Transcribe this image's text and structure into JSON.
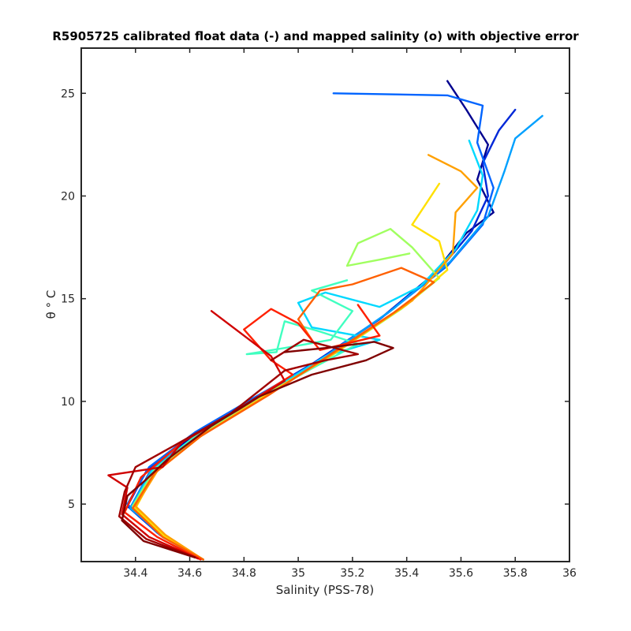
{
  "chart_data": {
    "type": "line",
    "title": "R5905725 calibrated float data (-) and mapped salinity (o) with objective error",
    "xlabel": "Salinity (PSS-78)",
    "ylabel": "θ ° C",
    "xlim": [
      34.2,
      36.0
    ],
    "ylim": [
      2.2,
      27.2
    ],
    "xticks": [
      "34.4",
      "34.6",
      "34.8",
      "35",
      "35.2",
      "35.4",
      "35.6",
      "35.8",
      "36"
    ],
    "yticks": [
      "5",
      "10",
      "15",
      "20",
      "25"
    ],
    "grid": false,
    "legend": "none",
    "colormap": [
      "#00008f",
      "#0040ff",
      "#00bfff",
      "#40ffbf",
      "#bfff40",
      "#ffbf00",
      "#ff4000",
      "#bf0000",
      "#800000"
    ],
    "series": [
      {
        "color": "#00008f",
        "values": [
          [
            34.65,
            2.3
          ],
          [
            34.5,
            3.4
          ],
          [
            34.38,
            4.8
          ],
          [
            34.45,
            6.5
          ],
          [
            34.6,
            8.2
          ],
          [
            34.82,
            10.0
          ],
          [
            35.05,
            11.8
          ],
          [
            35.3,
            14.0
          ],
          [
            35.5,
            16.2
          ],
          [
            35.62,
            18.2
          ],
          [
            35.72,
            19.2
          ],
          [
            35.66,
            20.8
          ],
          [
            35.7,
            22.5
          ],
          [
            35.62,
            24.2
          ],
          [
            35.55,
            25.6
          ]
        ]
      },
      {
        "color": "#0028d8",
        "values": [
          [
            34.64,
            2.35
          ],
          [
            34.49,
            3.5
          ],
          [
            34.37,
            4.9
          ],
          [
            34.44,
            6.6
          ],
          [
            34.6,
            8.3
          ],
          [
            34.83,
            10.1
          ],
          [
            35.06,
            11.9
          ],
          [
            35.31,
            14.1
          ],
          [
            35.52,
            16.4
          ],
          [
            35.64,
            18.3
          ],
          [
            35.7,
            20.0
          ],
          [
            35.68,
            21.6
          ],
          [
            35.74,
            23.2
          ],
          [
            35.8,
            24.2
          ]
        ]
      },
      {
        "color": "#0064ff",
        "values": [
          [
            34.64,
            2.3
          ],
          [
            34.48,
            3.6
          ],
          [
            34.37,
            5.0
          ],
          [
            34.45,
            6.8
          ],
          [
            34.62,
            8.5
          ],
          [
            34.84,
            10.2
          ],
          [
            35.08,
            12.0
          ],
          [
            35.33,
            14.3
          ],
          [
            35.55,
            16.6
          ],
          [
            35.68,
            18.6
          ],
          [
            35.72,
            20.4
          ],
          [
            35.66,
            22.6
          ],
          [
            35.68,
            24.4
          ],
          [
            35.55,
            24.9
          ],
          [
            35.13,
            25.0
          ]
        ]
      },
      {
        "color": "#00a0ff",
        "values": [
          [
            34.65,
            2.3
          ],
          [
            34.5,
            3.5
          ],
          [
            34.38,
            4.8
          ],
          [
            34.46,
            6.7
          ],
          [
            34.63,
            8.4
          ],
          [
            34.85,
            10.1
          ],
          [
            35.09,
            12.1
          ],
          [
            35.35,
            14.5
          ],
          [
            35.56,
            16.8
          ],
          [
            35.7,
            19.0
          ],
          [
            35.76,
            21.2
          ],
          [
            35.8,
            22.8
          ],
          [
            35.9,
            23.9
          ]
        ]
      },
      {
        "color": "#00d8ff",
        "values": [
          [
            34.65,
            2.3
          ],
          [
            34.5,
            3.4
          ],
          [
            34.39,
            4.9
          ],
          [
            34.46,
            6.6
          ],
          [
            34.62,
            8.3
          ],
          [
            34.86,
            10.2
          ],
          [
            35.1,
            12.2
          ],
          [
            35.3,
            13.0
          ],
          [
            35.05,
            13.6
          ],
          [
            35.0,
            14.8
          ],
          [
            35.1,
            15.3
          ],
          [
            35.3,
            14.6
          ],
          [
            35.45,
            15.6
          ],
          [
            35.58,
            17.4
          ],
          [
            35.66,
            19.3
          ],
          [
            35.68,
            21.0
          ],
          [
            35.63,
            22.7
          ]
        ]
      },
      {
        "color": "#40ffc0",
        "values": [
          [
            34.65,
            2.3
          ],
          [
            34.5,
            3.5
          ],
          [
            34.39,
            4.9
          ],
          [
            34.47,
            6.7
          ],
          [
            34.63,
            8.4
          ],
          [
            34.86,
            10.2
          ],
          [
            35.05,
            11.6
          ],
          [
            35.22,
            12.8
          ],
          [
            35.08,
            13.4
          ],
          [
            34.95,
            13.9
          ],
          [
            34.92,
            12.4
          ],
          [
            34.81,
            12.3
          ],
          [
            34.95,
            12.6
          ],
          [
            35.12,
            13.0
          ],
          [
            35.2,
            14.4
          ],
          [
            35.05,
            15.4
          ],
          [
            35.18,
            15.9
          ]
        ]
      },
      {
        "color": "#a0ff60",
        "values": [
          [
            34.65,
            2.3
          ],
          [
            34.5,
            3.5
          ],
          [
            34.39,
            4.9
          ],
          [
            34.47,
            6.6
          ],
          [
            34.63,
            8.3
          ],
          [
            34.87,
            10.2
          ],
          [
            35.12,
            12.2
          ],
          [
            35.38,
            14.5
          ],
          [
            35.52,
            16.0
          ],
          [
            35.42,
            17.5
          ],
          [
            35.34,
            18.4
          ],
          [
            35.22,
            17.7
          ],
          [
            35.18,
            16.6
          ],
          [
            35.3,
            16.9
          ],
          [
            35.41,
            17.2
          ]
        ]
      },
      {
        "color": "#ffe000",
        "values": [
          [
            34.65,
            2.3
          ],
          [
            34.51,
            3.4
          ],
          [
            34.4,
            4.8
          ],
          [
            34.47,
            6.5
          ],
          [
            34.64,
            8.3
          ],
          [
            34.88,
            10.3
          ],
          [
            35.14,
            12.4
          ],
          [
            35.4,
            14.7
          ],
          [
            35.55,
            16.4
          ],
          [
            35.52,
            17.8
          ],
          [
            35.42,
            18.6
          ],
          [
            35.48,
            19.8
          ],
          [
            35.52,
            20.6
          ]
        ]
      },
      {
        "color": "#ffa000",
        "values": [
          [
            34.65,
            2.3
          ],
          [
            34.51,
            3.5
          ],
          [
            34.4,
            4.9
          ],
          [
            34.48,
            6.6
          ],
          [
            34.65,
            8.4
          ],
          [
            34.9,
            10.4
          ],
          [
            35.15,
            12.5
          ],
          [
            35.42,
            14.9
          ],
          [
            35.57,
            17.2
          ],
          [
            35.58,
            19.2
          ],
          [
            35.66,
            20.4
          ],
          [
            35.6,
            21.2
          ],
          [
            35.48,
            22.0
          ]
        ]
      },
      {
        "color": "#ff6000",
        "values": [
          [
            34.65,
            2.3
          ],
          [
            34.5,
            3.4
          ],
          [
            34.39,
            4.8
          ],
          [
            34.47,
            6.5
          ],
          [
            34.64,
            8.3
          ],
          [
            34.89,
            10.3
          ],
          [
            35.12,
            12.3
          ],
          [
            35.35,
            14.3
          ],
          [
            35.5,
            15.8
          ],
          [
            35.38,
            16.5
          ],
          [
            35.2,
            15.7
          ],
          [
            35.08,
            15.4
          ],
          [
            35.0,
            14.0
          ],
          [
            35.05,
            13.0
          ]
        ]
      },
      {
        "color": "#ff2000",
        "values": [
          [
            34.64,
            2.3
          ],
          [
            34.48,
            3.4
          ],
          [
            34.36,
            4.6
          ],
          [
            34.42,
            6.3
          ],
          [
            34.58,
            8.1
          ],
          [
            34.8,
            9.8
          ],
          [
            34.98,
            11.3
          ],
          [
            34.9,
            12.0
          ],
          [
            34.8,
            13.5
          ],
          [
            34.9,
            14.5
          ],
          [
            35.0,
            13.8
          ],
          [
            35.08,
            12.5
          ],
          [
            35.3,
            13.2
          ],
          [
            35.22,
            14.7
          ]
        ]
      },
      {
        "color": "#d00000",
        "values": [
          [
            34.63,
            2.35
          ],
          [
            34.45,
            3.4
          ],
          [
            34.35,
            4.5
          ],
          [
            34.37,
            5.8
          ],
          [
            34.3,
            6.4
          ],
          [
            34.5,
            6.8
          ],
          [
            34.57,
            8.0
          ],
          [
            34.78,
            9.6
          ],
          [
            34.95,
            11.0
          ],
          [
            34.9,
            12.2
          ],
          [
            34.68,
            14.4
          ]
        ]
      },
      {
        "color": "#a00000",
        "values": [
          [
            34.62,
            2.4
          ],
          [
            34.44,
            3.3
          ],
          [
            34.34,
            4.4
          ],
          [
            34.36,
            5.6
          ],
          [
            34.4,
            6.8
          ],
          [
            34.55,
            7.9
          ],
          [
            34.75,
            9.4
          ],
          [
            34.95,
            11.5
          ],
          [
            35.1,
            12.0
          ],
          [
            35.22,
            12.3
          ],
          [
            35.02,
            13.0
          ],
          [
            34.9,
            12.0
          ]
        ]
      },
      {
        "color": "#800000",
        "values": [
          [
            34.62,
            2.4
          ],
          [
            34.43,
            3.2
          ],
          [
            34.35,
            4.2
          ],
          [
            34.37,
            5.4
          ],
          [
            34.44,
            6.2
          ],
          [
            34.52,
            7.2
          ],
          [
            34.68,
            8.8
          ],
          [
            34.85,
            10.2
          ],
          [
            35.05,
            11.3
          ],
          [
            35.25,
            12.0
          ],
          [
            35.35,
            12.6
          ],
          [
            35.28,
            12.9
          ],
          [
            35.1,
            12.6
          ],
          [
            34.95,
            12.4
          ]
        ]
      }
    ]
  }
}
